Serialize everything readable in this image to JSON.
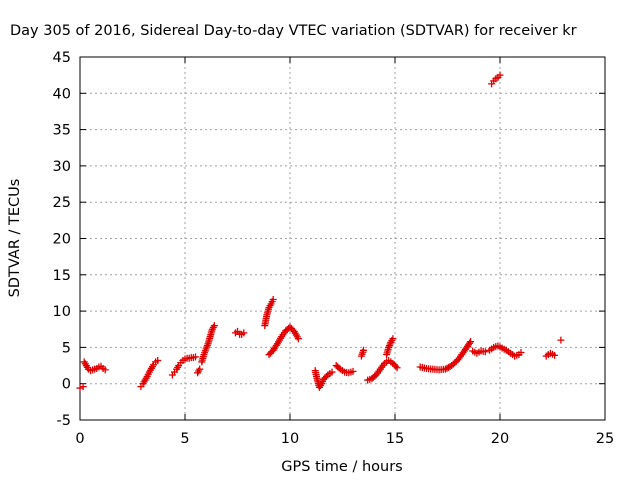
{
  "chart_data": {
    "type": "scatter",
    "title": "Day 305 of 2016, Sidereal Day-to-day VTEC variation (SDTVAR) for receiver kr",
    "xlabel": "GPS time / hours",
    "ylabel": "SDTVAR / TECUs",
    "xlim": [
      0,
      25
    ],
    "ylim": [
      -5,
      45
    ],
    "xticks": [
      0,
      5,
      10,
      15,
      20,
      25
    ],
    "yticks": [
      -5,
      0,
      5,
      10,
      15,
      20,
      25,
      30,
      35,
      40,
      45
    ],
    "grid": true,
    "marker": "plus",
    "color": "#e00000",
    "segments": [
      {
        "x": [
          0.0,
          0.15
        ],
        "y": [
          -0.6,
          -0.4
        ]
      },
      {
        "x": [
          0.2,
          0.3,
          0.4,
          0.5,
          0.6,
          0.7,
          0.8,
          0.9,
          1.0,
          1.1,
          1.2
        ],
        "y": [
          3.0,
          2.5,
          2.0,
          1.8,
          1.9,
          2.0,
          2.1,
          2.3,
          2.4,
          2.1,
          1.9
        ]
      },
      {
        "x": [
          2.9,
          3.0,
          3.1,
          3.2,
          3.3,
          3.4,
          3.5,
          3.6,
          3.7
        ],
        "y": [
          -0.4,
          0.0,
          0.5,
          1.0,
          1.6,
          2.1,
          2.6,
          3.0,
          3.2
        ]
      },
      {
        "x": [
          4.4,
          4.5,
          4.6,
          4.7,
          4.8,
          4.9,
          5.0,
          5.1,
          5.2,
          5.3,
          5.4,
          5.5
        ],
        "y": [
          1.2,
          1.6,
          2.0,
          2.5,
          2.9,
          3.2,
          3.4,
          3.5,
          3.5,
          3.6,
          3.6,
          3.7
        ]
      },
      {
        "x": [
          5.6,
          5.7
        ],
        "y": [
          1.5,
          2.0
        ]
      },
      {
        "x": [
          5.8,
          5.9,
          6.0,
          6.1,
          6.2,
          6.3,
          6.4
        ],
        "y": [
          3.0,
          4.0,
          4.8,
          5.5,
          6.5,
          7.5,
          8.0
        ]
      },
      {
        "x": [
          7.4,
          7.5,
          7.6,
          7.7,
          7.8
        ],
        "y": [
          7.0,
          7.2,
          6.8,
          6.8,
          7.0
        ]
      },
      {
        "x": [
          8.8,
          8.9,
          9.0,
          9.1,
          9.2
        ],
        "y": [
          8.0,
          9.5,
          10.5,
          11.0,
          11.6
        ]
      },
      {
        "x": [
          9.0,
          9.2,
          9.4,
          9.6,
          9.8,
          10.0,
          10.2,
          10.4
        ],
        "y": [
          4.0,
          4.6,
          5.5,
          6.5,
          7.3,
          7.8,
          7.2,
          6.2
        ]
      },
      {
        "x": [
          11.2,
          11.3,
          11.4,
          11.5,
          11.6,
          11.8,
          12.0
        ],
        "y": [
          1.8,
          0.5,
          -0.5,
          0.0,
          0.6,
          1.2,
          1.6
        ]
      },
      {
        "x": [
          12.2,
          12.4,
          12.6,
          12.8,
          13.0
        ],
        "y": [
          2.5,
          2.0,
          1.6,
          1.5,
          1.7
        ]
      },
      {
        "x": [
          13.4,
          13.5
        ],
        "y": [
          3.8,
          4.6
        ]
      },
      {
        "x": [
          13.7,
          13.9,
          14.1,
          14.3,
          14.5,
          14.7,
          14.9,
          15.1
        ],
        "y": [
          0.5,
          0.7,
          1.2,
          2.0,
          2.8,
          3.2,
          2.8,
          2.2
        ]
      },
      {
        "x": [
          14.6,
          14.7,
          14.8,
          14.9
        ],
        "y": [
          4.0,
          5.0,
          5.7,
          6.2
        ]
      },
      {
        "x": [
          16.2,
          16.5,
          16.8,
          17.1,
          17.4,
          17.7,
          18.0,
          18.3,
          18.6
        ],
        "y": [
          2.3,
          2.1,
          2.0,
          1.9,
          2.0,
          2.5,
          3.3,
          4.5,
          5.8
        ]
      },
      {
        "x": [
          18.7,
          18.9,
          19.1,
          19.3
        ],
        "y": [
          4.5,
          4.2,
          4.5,
          4.4
        ]
      },
      {
        "x": [
          19.5,
          19.7,
          19.9,
          20.1,
          20.3,
          20.5,
          20.7,
          20.9,
          21.0
        ],
        "y": [
          4.6,
          5.0,
          5.2,
          4.9,
          4.6,
          4.2,
          3.8,
          4.0,
          4.3
        ]
      },
      {
        "x": [
          19.6,
          19.7,
          19.8,
          19.9,
          20.0
        ],
        "y": [
          41.3,
          41.7,
          42.0,
          42.2,
          42.5
        ]
      },
      {
        "x": [
          22.2,
          22.4,
          22.6
        ],
        "y": [
          3.8,
          4.2,
          3.9
        ]
      },
      {
        "x": [
          22.9
        ],
        "y": [
          6.0
        ]
      }
    ]
  }
}
